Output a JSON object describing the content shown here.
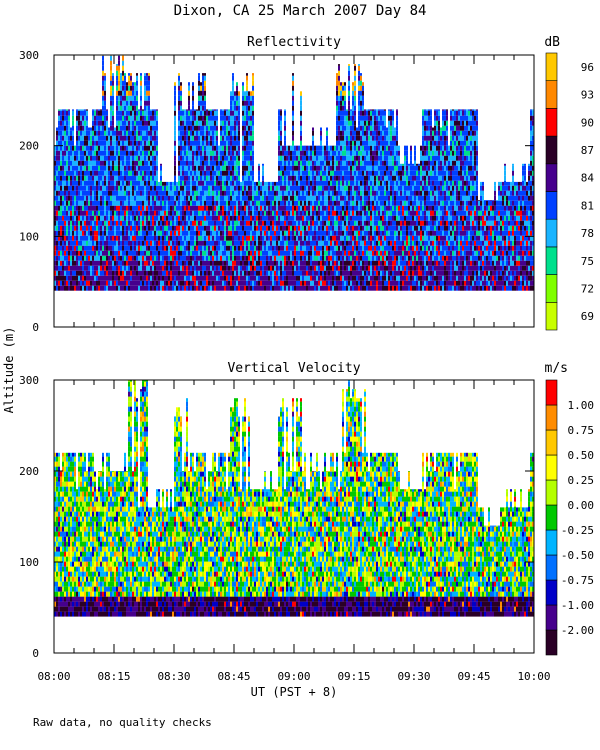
{
  "title": "Dixon, CA 25 March 2007  Day  84",
  "ylabel": "Altitude (m)",
  "xlabel": "UT  (PST + 8)",
  "note": "Raw data, no quality checks",
  "colors": {
    "reflectivity": [
      "#c8ff00",
      "#7fff00",
      "#00e08c",
      "#1ab4ff",
      "#0040ff",
      "#46008c",
      "#2a0026",
      "#ff0000",
      "#ff8800",
      "#ffc800"
    ],
    "velocity": [
      "#2a0026",
      "#46008c",
      "#0000c8",
      "#0070ff",
      "#00b4ff",
      "#00c800",
      "#b4ff00",
      "#ffff00",
      "#ffc800",
      "#ff8c00",
      "#ff0000"
    ]
  },
  "chart_data": [
    {
      "type": "heatmap",
      "title": "Reflectivity",
      "colorbar_label": "dB",
      "colorbar_ticks": [
        "69",
        "72",
        "75",
        "78",
        "81",
        "84",
        "87",
        "90",
        "93",
        "96"
      ],
      "x_ticks": [
        "08:00",
        "08:15",
        "08:30",
        "08:45",
        "09:00",
        "09:15",
        "09:30",
        "09:45",
        "10:00"
      ],
      "y_ticks": [
        "0",
        "100",
        "200",
        "300"
      ],
      "xlim_minutes": [
        0,
        120
      ],
      "ylim": [
        0,
        300
      ],
      "range_gate_min_m": 40,
      "typical_top_m": 240,
      "gaps": [
        {
          "t": [
            14,
            20
          ],
          "below_m": 200
        },
        {
          "t": [
            22,
            25
          ],
          "below_m": 240
        },
        {
          "t": [
            26,
            32
          ],
          "below_m": 160
        },
        {
          "t": [
            46,
            56
          ],
          "below_m": 160
        },
        {
          "t": [
            58,
            72
          ],
          "below_m": 200
        },
        {
          "t": [
            86,
            92
          ],
          "below_m": 180
        },
        {
          "t": [
            106,
            112
          ],
          "below_m": 140
        },
        {
          "t": [
            112,
            119
          ],
          "below_m": 160
        }
      ],
      "towers": [
        {
          "t": [
            12,
            18
          ],
          "top_m": 300
        },
        {
          "t": [
            18,
            24
          ],
          "top_m": 290
        },
        {
          "t": [
            30,
            38
          ],
          "top_m": 280
        },
        {
          "t": [
            44,
            50
          ],
          "top_m": 280
        },
        {
          "t": [
            58,
            62
          ],
          "top_m": 280
        },
        {
          "t": [
            70,
            78
          ],
          "top_m": 290
        }
      ]
    },
    {
      "type": "heatmap",
      "title": "Vertical Velocity",
      "colorbar_label": "m/s",
      "colorbar_ticks": [
        "-2.00",
        "-1.00",
        "-0.75",
        "-0.50",
        "-0.25",
        "0.00",
        "0.25",
        "0.50",
        "0.75",
        "1.00"
      ],
      "x_ticks": [
        "08:00",
        "08:15",
        "08:30",
        "08:45",
        "09:00",
        "09:15",
        "09:30",
        "09:45",
        "10:00"
      ],
      "y_ticks": [
        "0",
        "100",
        "200",
        "300"
      ],
      "xlim_minutes": [
        0,
        120
      ],
      "ylim": [
        0,
        300
      ],
      "range_gate_min_m": 40,
      "typical_top_m": 220,
      "gaps": [
        {
          "t": [
            14,
            20
          ],
          "below_m": 200
        },
        {
          "t": [
            22,
            25
          ],
          "below_m": 220
        },
        {
          "t": [
            20,
            32
          ],
          "below_m": 160
        },
        {
          "t": [
            46,
            56
          ],
          "below_m": 180
        },
        {
          "t": [
            58,
            72
          ],
          "below_m": 200
        },
        {
          "t": [
            86,
            92
          ],
          "below_m": 180
        },
        {
          "t": [
            106,
            112
          ],
          "below_m": 140
        },
        {
          "t": [
            112,
            119
          ],
          "below_m": 160
        }
      ],
      "towers": [
        {
          "t": [
            18,
            24
          ],
          "top_m": 300
        },
        {
          "t": [
            30,
            34
          ],
          "top_m": 280
        },
        {
          "t": [
            44,
            50
          ],
          "top_m": 280
        },
        {
          "t": [
            56,
            62
          ],
          "top_m": 280
        },
        {
          "t": [
            72,
            78
          ],
          "top_m": 300
        }
      ]
    }
  ]
}
